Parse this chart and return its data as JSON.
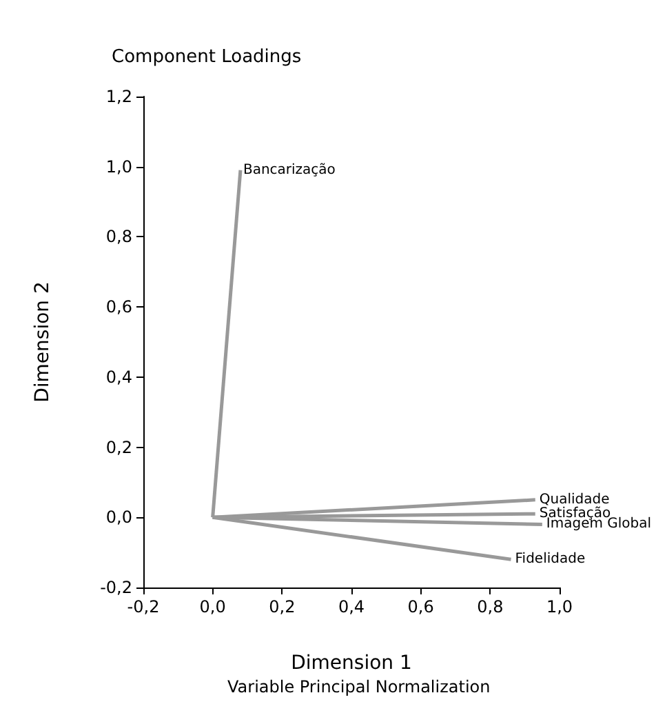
{
  "chart_data": {
    "type": "line",
    "title": "Component Loadings",
    "xlabel": "Dimension 1",
    "ylabel": "Dimension 2",
    "annotations": [
      "Variable Principal Normalization"
    ],
    "xlim": [
      -0.2,
      1.0
    ],
    "ylim": [
      -0.2,
      1.2
    ],
    "xticks": [
      {
        "value": -0.2,
        "label": "-0,2"
      },
      {
        "value": 0,
        "label": "0,0"
      },
      {
        "value": 0.2,
        "label": "0,2"
      },
      {
        "value": 0.4,
        "label": "0,4"
      },
      {
        "value": 0.6,
        "label": "0,6"
      },
      {
        "value": 0.8,
        "label": "0,8"
      },
      {
        "value": 1.0,
        "label": "1,0"
      }
    ],
    "yticks": [
      {
        "value": -0.2,
        "label": "-0,2"
      },
      {
        "value": 0,
        "label": "0,0"
      },
      {
        "value": 0.2,
        "label": "0,2"
      },
      {
        "value": 0.4,
        "label": "0,4"
      },
      {
        "value": 0.6,
        "label": "0,6"
      },
      {
        "value": 0.8,
        "label": "0,8"
      },
      {
        "value": 1.0,
        "label": "1,0"
      },
      {
        "value": 1.2,
        "label": "1,2"
      }
    ],
    "grid": false,
    "legend": false,
    "marker": "none",
    "series": [
      {
        "name": "Bancarização",
        "color": "#999999",
        "x": [
          0,
          0.08
        ],
        "values": [
          0,
          0.99
        ]
      },
      {
        "name": "Qualidade",
        "color": "#999999",
        "x": [
          0,
          0.93
        ],
        "values": [
          0,
          0.05
        ]
      },
      {
        "name": "Satisfação",
        "color": "#999999",
        "x": [
          0,
          0.93
        ],
        "values": [
          0,
          0.01
        ]
      },
      {
        "name": "Imagem Global",
        "color": "#999999",
        "x": [
          0,
          0.95
        ],
        "values": [
          0,
          -0.02
        ]
      },
      {
        "name": "Fidelidade",
        "color": "#999999",
        "x": [
          0,
          0.86
        ],
        "values": [
          0,
          -0.12
        ]
      }
    ]
  }
}
